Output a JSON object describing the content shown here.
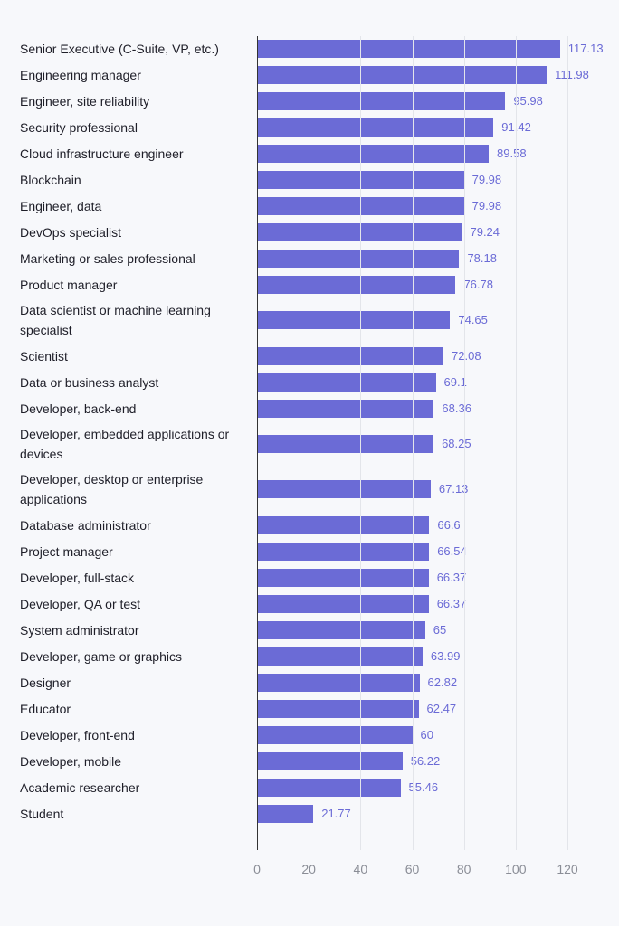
{
  "chart_data": {
    "type": "bar",
    "orientation": "horizontal",
    "categories": [
      "Senior Executive (C-Suite, VP, etc.)",
      "Engineering manager",
      "Engineer, site reliability",
      "Security professional",
      "Cloud infrastructure engineer",
      "Blockchain",
      "Engineer, data",
      "DevOps specialist",
      "Marketing or sales professional",
      "Product manager",
      "Data scientist or machine learning specialist",
      "Scientist",
      "Data or business analyst",
      "Developer, back-end",
      "Developer, embedded applications or devices",
      "Developer, desktop or enterprise applications",
      "Database administrator",
      "Project manager",
      "Developer, full-stack",
      "Developer, QA or test",
      "System administrator",
      "Developer, game or graphics",
      "Designer",
      "Educator",
      "Developer, front-end",
      "Developer, mobile",
      "Academic researcher",
      "Student"
    ],
    "values": [
      117.13,
      111.98,
      95.98,
      91.42,
      89.58,
      79.98,
      79.98,
      79.24,
      78.18,
      76.78,
      74.65,
      72.08,
      69.1,
      68.36,
      68.25,
      67.13,
      66.6,
      66.54,
      66.37,
      66.37,
      65,
      63.99,
      62.82,
      62.47,
      60,
      56.22,
      55.46,
      21.77
    ],
    "color": "#6b6bd6",
    "xlim": [
      0,
      120
    ],
    "xticks": [
      0,
      20,
      40,
      60,
      80,
      100,
      120
    ],
    "grid": true
  }
}
